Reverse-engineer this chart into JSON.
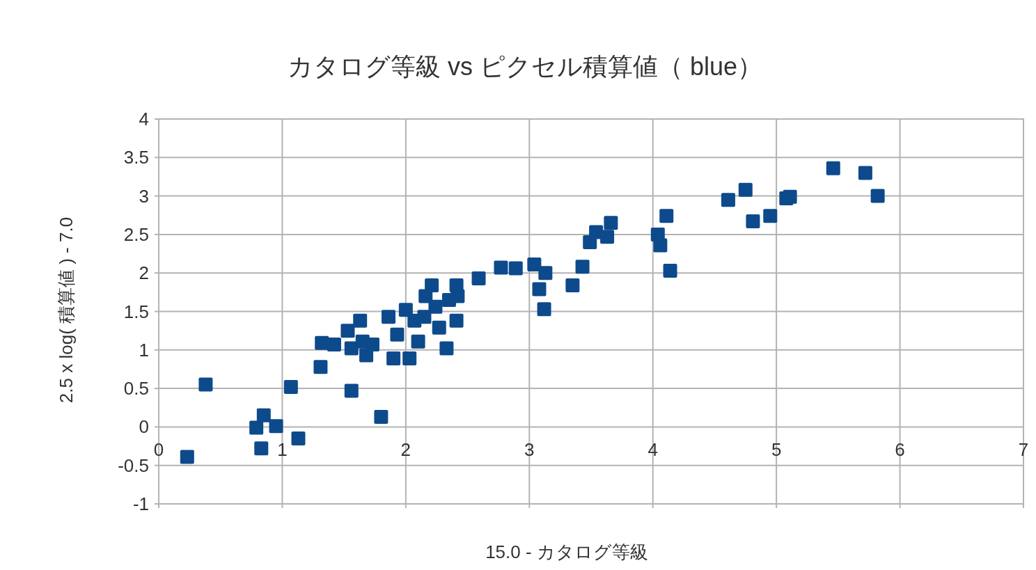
{
  "chart_data": {
    "type": "scatter",
    "title": "カタログ等級 vs ピクセル積算値（ blue）",
    "xlabel": "15.0 -  カタログ等級",
    "ylabel": "2.5 x log( 積算値 ) - 7.0",
    "marker": "square",
    "grid": true,
    "xlim": [
      0,
      7
    ],
    "xticks": [
      0,
      1,
      2,
      3,
      4,
      5,
      6,
      7
    ],
    "ylim": [
      -1,
      4
    ],
    "yticks": [
      -1,
      -0.5,
      0,
      0.5,
      1,
      1.5,
      2,
      2.5,
      3,
      3.5,
      4
    ],
    "series": [
      {
        "color": "#0d4a8c",
        "x": [
          0.23,
          0.38,
          0.79,
          0.85,
          0.83,
          0.95,
          1.13,
          1.07,
          1.31,
          1.32,
          1.56,
          1.8,
          1.42,
          1.53,
          1.56,
          1.63,
          1.65,
          1.68,
          1.73,
          1.86,
          1.9,
          1.93,
          2.0,
          2.03,
          2.1,
          2.07,
          2.15,
          2.21,
          2.24,
          2.27,
          2.33,
          2.35,
          2.41,
          2.41,
          2.42,
          2.16,
          2.59,
          2.77,
          2.89,
          3.04,
          3.08,
          3.13,
          3.12,
          3.35,
          3.43,
          3.49,
          3.54,
          3.63,
          3.66,
          4.04,
          4.06,
          4.11,
          4.14,
          4.61,
          4.75,
          4.81,
          4.95,
          5.08,
          5.11,
          5.46,
          5.72,
          5.82
        ],
        "values": [
          -0.39,
          0.55,
          -0.01,
          0.15,
          -0.28,
          0.01,
          -0.15,
          0.52,
          0.78,
          1.09,
          0.47,
          0.13,
          1.07,
          1.25,
          1.02,
          1.38,
          1.11,
          0.93,
          1.07,
          1.43,
          0.89,
          1.2,
          1.52,
          0.89,
          1.11,
          1.38,
          1.43,
          1.84,
          1.56,
          1.29,
          1.02,
          1.65,
          1.84,
          1.38,
          1.7,
          1.7,
          1.93,
          2.07,
          2.06,
          2.11,
          1.79,
          2.0,
          1.53,
          1.84,
          2.08,
          2.4,
          2.53,
          2.47,
          2.65,
          2.5,
          2.36,
          2.74,
          2.03,
          2.95,
          3.08,
          2.67,
          2.74,
          2.97,
          2.99,
          3.36,
          3.3,
          3.0
        ]
      }
    ]
  }
}
